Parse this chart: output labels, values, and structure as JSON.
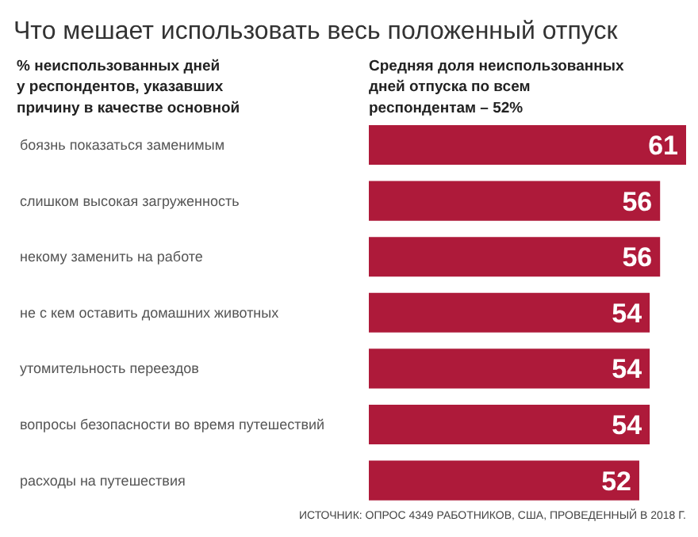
{
  "chart_data": {
    "type": "bar",
    "orientation": "horizontal",
    "title": "Что мешает использовать весь положенный отпуск",
    "subtitle": "% неиспользованных дней\nу респондентов, указавших\nпричину в качестве основной",
    "annotations": [
      "Средняя доля неиспользованных\nдней отпуска по всем\nреспондентам – 52%",
      "ИСТОЧНИК: ОПРОС 4349 РАБОТНИКОВ, США, ПРОВЕДЕННЫЙ В 2018 Г."
    ],
    "categories": [
      "боязнь показаться заменимым",
      "слишком высокая загруженность",
      "некому заменить на работе",
      "не с кем оставить домашних животных",
      "утомительность переездов",
      "вопросы безопасности во время путешествий",
      "расходы на путешествия"
    ],
    "values": [
      61,
      56,
      56,
      54,
      54,
      54,
      52
    ],
    "color": "#ae1a3a",
    "data_labels": true,
    "tick_labels": false
  }
}
